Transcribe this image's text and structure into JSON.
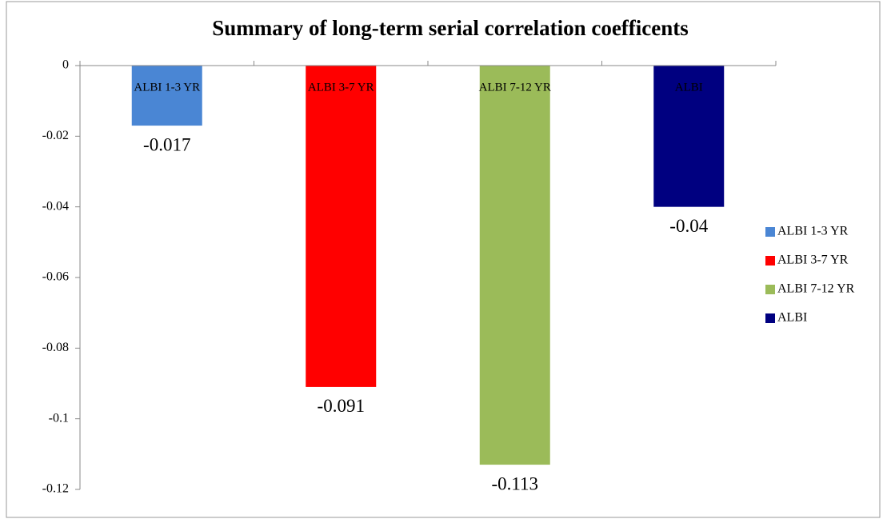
{
  "chart_data": {
    "type": "bar",
    "title": "Summary of long-term serial correlation coefficents",
    "categories": [
      "ALBI 1-3 YR",
      "ALBI 3-7 YR",
      "ALBI 7-12 YR",
      "ALBI"
    ],
    "values": [
      -0.017,
      -0.091,
      -0.113,
      -0.04
    ],
    "colors": [
      "#4a86d4",
      "#ff0000",
      "#9bbb59",
      "#000080"
    ],
    "ylim": [
      -0.12,
      0
    ],
    "yticks": [
      0,
      -0.02,
      -0.04,
      -0.06,
      -0.08,
      -0.1,
      -0.12
    ],
    "legend": "right"
  }
}
